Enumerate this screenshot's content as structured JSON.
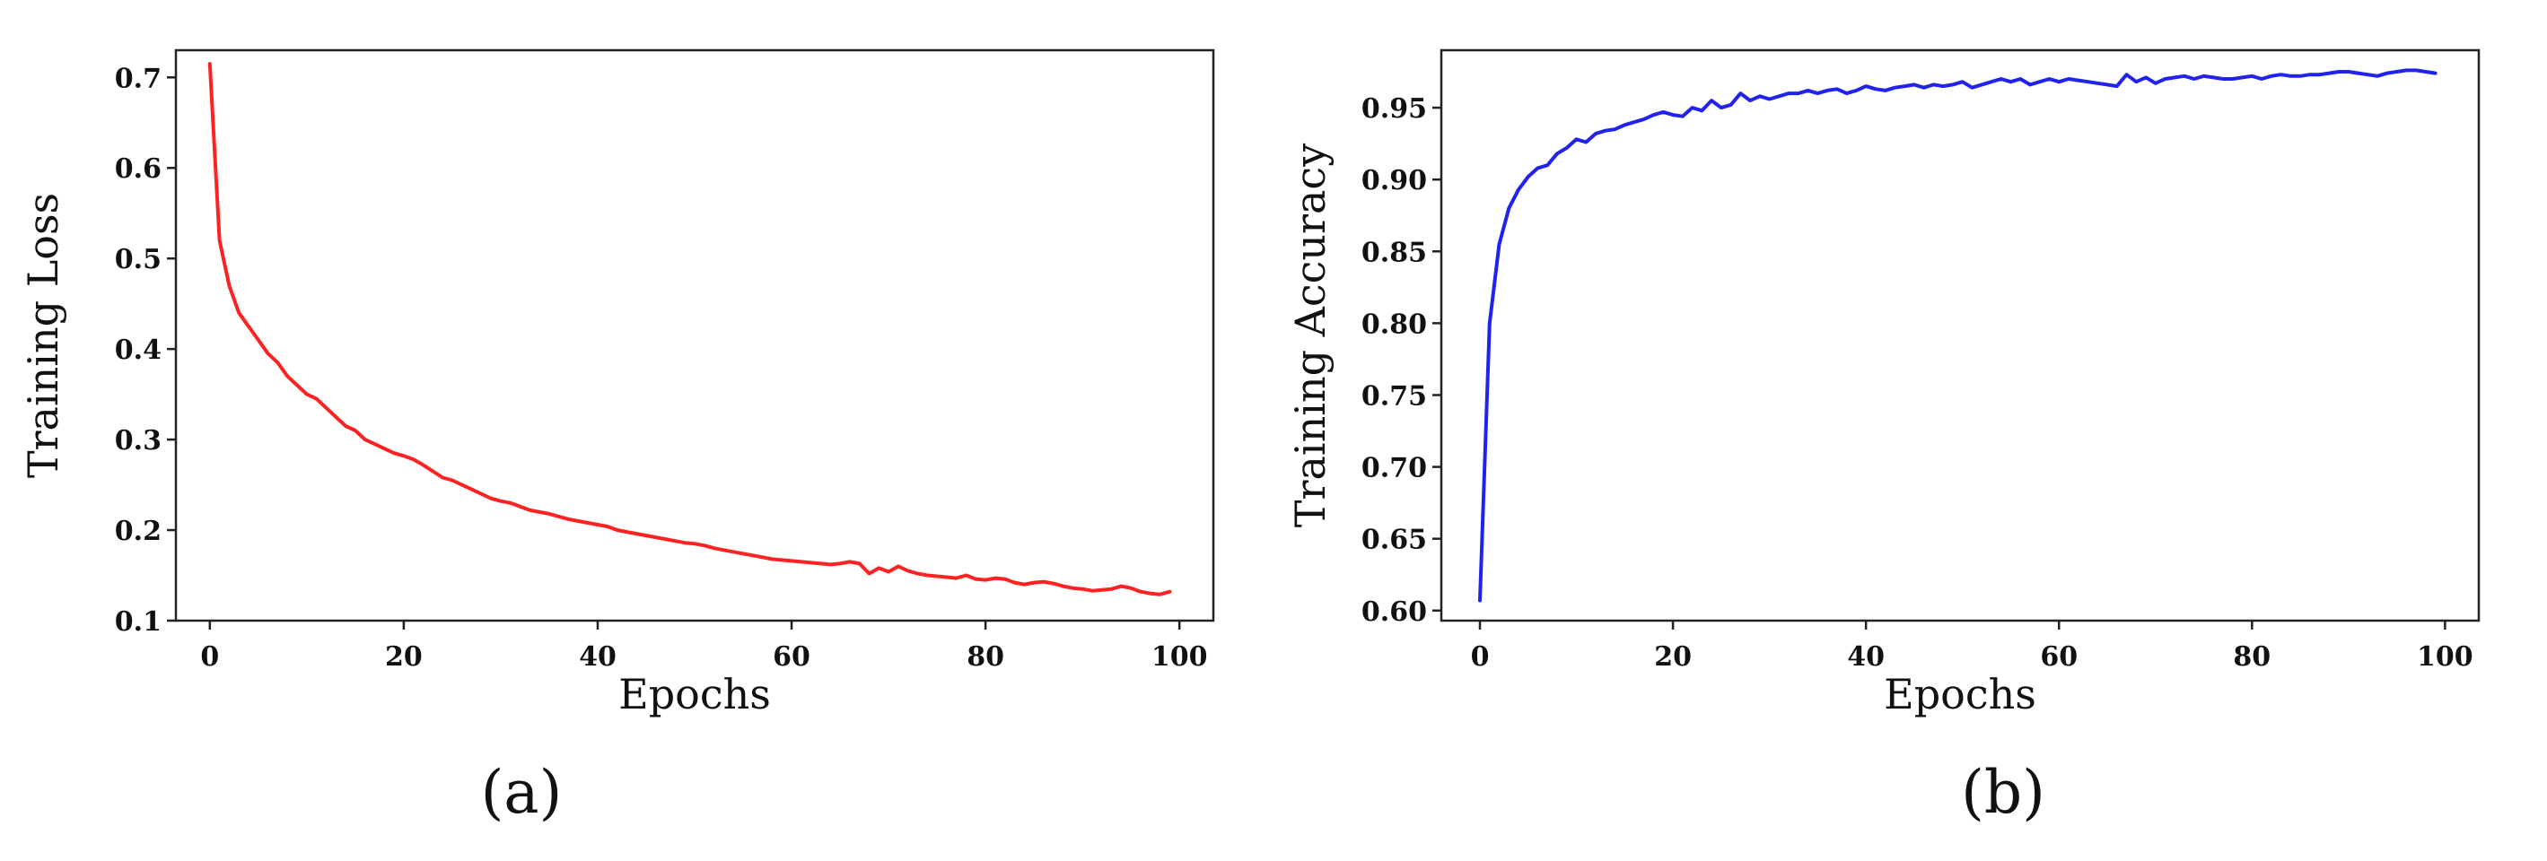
{
  "chart_data": [
    {
      "type": "line",
      "panel_label": "(a)",
      "xlabel": "Epochs",
      "ylabel": "Training Loss",
      "xlim": [
        -3.5,
        103.5
      ],
      "ylim": [
        0.1,
        0.73
      ],
      "xticks": [
        0,
        20,
        40,
        60,
        80,
        100
      ],
      "yticks": [
        0.1,
        0.2,
        0.3,
        0.4,
        0.5,
        0.6,
        0.7
      ],
      "xtick_labels": [
        "0",
        "20",
        "40",
        "60",
        "80",
        "100"
      ],
      "ytick_labels": [
        "0.1",
        "0.2",
        "0.3",
        "0.4",
        "0.5",
        "0.6",
        "0.7"
      ],
      "grid": false,
      "series": [
        {
          "color": "#ff2222",
          "x": [
            0,
            1,
            2,
            3,
            4,
            5,
            6,
            7,
            8,
            9,
            10,
            11,
            12,
            13,
            14,
            15,
            16,
            17,
            18,
            19,
            20,
            21,
            22,
            23,
            24,
            25,
            26,
            27,
            28,
            29,
            30,
            31,
            32,
            33,
            34,
            35,
            36,
            37,
            38,
            39,
            40,
            41,
            42,
            43,
            44,
            45,
            46,
            47,
            48,
            49,
            50,
            51,
            52,
            53,
            54,
            55,
            56,
            57,
            58,
            59,
            60,
            61,
            62,
            63,
            64,
            65,
            66,
            67,
            68,
            69,
            70,
            71,
            72,
            73,
            74,
            75,
            76,
            77,
            78,
            79,
            80,
            81,
            82,
            83,
            84,
            85,
            86,
            87,
            88,
            89,
            90,
            91,
            92,
            93,
            94,
            95,
            96,
            97,
            98,
            99
          ],
          "y": [
            0.715,
            0.52,
            0.47,
            0.44,
            0.425,
            0.41,
            0.395,
            0.385,
            0.37,
            0.36,
            0.35,
            0.345,
            0.335,
            0.325,
            0.315,
            0.31,
            0.3,
            0.295,
            0.29,
            0.285,
            0.282,
            0.278,
            0.272,
            0.265,
            0.258,
            0.255,
            0.25,
            0.245,
            0.24,
            0.235,
            0.232,
            0.23,
            0.226,
            0.222,
            0.22,
            0.218,
            0.215,
            0.212,
            0.21,
            0.208,
            0.206,
            0.204,
            0.2,
            0.198,
            0.196,
            0.194,
            0.192,
            0.19,
            0.188,
            0.186,
            0.185,
            0.183,
            0.18,
            0.178,
            0.176,
            0.174,
            0.172,
            0.17,
            0.168,
            0.167,
            0.166,
            0.165,
            0.164,
            0.163,
            0.162,
            0.163,
            0.165,
            0.163,
            0.152,
            0.158,
            0.154,
            0.16,
            0.155,
            0.152,
            0.15,
            0.149,
            0.148,
            0.147,
            0.15,
            0.146,
            0.145,
            0.147,
            0.146,
            0.142,
            0.14,
            0.142,
            0.143,
            0.141,
            0.138,
            0.136,
            0.135,
            0.133,
            0.134,
            0.135,
            0.138,
            0.136,
            0.132,
            0.13,
            0.129,
            0.132
          ]
        }
      ]
    },
    {
      "type": "line",
      "panel_label": "(b)",
      "xlabel": "Epochs",
      "ylabel": "Training Accuracy",
      "xlim": [
        -4,
        103.5
      ],
      "ylim": [
        0.593,
        0.99
      ],
      "xticks": [
        0,
        20,
        40,
        60,
        80,
        100
      ],
      "yticks": [
        0.6,
        0.65,
        0.7,
        0.75,
        0.8,
        0.85,
        0.9,
        0.95
      ],
      "xtick_labels": [
        "0",
        "20",
        "40",
        "60",
        "80",
        "100"
      ],
      "ytick_labels": [
        "0.60",
        "0.65",
        "0.70",
        "0.75",
        "0.80",
        "0.85",
        "0.90",
        "0.95"
      ],
      "grid": false,
      "series": [
        {
          "color": "#2222ee",
          "x": [
            0,
            1,
            2,
            3,
            4,
            5,
            6,
            7,
            8,
            9,
            10,
            11,
            12,
            13,
            14,
            15,
            16,
            17,
            18,
            19,
            20,
            21,
            22,
            23,
            24,
            25,
            26,
            27,
            28,
            29,
            30,
            31,
            32,
            33,
            34,
            35,
            36,
            37,
            38,
            39,
            40,
            41,
            42,
            43,
            44,
            45,
            46,
            47,
            48,
            49,
            50,
            51,
            52,
            53,
            54,
            55,
            56,
            57,
            58,
            59,
            60,
            61,
            62,
            63,
            64,
            65,
            66,
            67,
            68,
            69,
            70,
            71,
            72,
            73,
            74,
            75,
            76,
            77,
            78,
            79,
            80,
            81,
            82,
            83,
            84,
            85,
            86,
            87,
            88,
            89,
            90,
            91,
            92,
            93,
            94,
            95,
            96,
            97,
            98,
            99
          ],
          "y": [
            0.607,
            0.8,
            0.855,
            0.88,
            0.893,
            0.902,
            0.908,
            0.91,
            0.918,
            0.922,
            0.928,
            0.926,
            0.932,
            0.934,
            0.935,
            0.938,
            0.94,
            0.942,
            0.945,
            0.947,
            0.945,
            0.944,
            0.95,
            0.948,
            0.955,
            0.95,
            0.952,
            0.96,
            0.955,
            0.958,
            0.956,
            0.958,
            0.96,
            0.96,
            0.962,
            0.96,
            0.962,
            0.963,
            0.96,
            0.962,
            0.965,
            0.963,
            0.962,
            0.964,
            0.965,
            0.966,
            0.964,
            0.966,
            0.965,
            0.966,
            0.968,
            0.964,
            0.966,
            0.968,
            0.97,
            0.968,
            0.97,
            0.966,
            0.968,
            0.97,
            0.968,
            0.97,
            0.969,
            0.968,
            0.967,
            0.966,
            0.965,
            0.973,
            0.968,
            0.971,
            0.967,
            0.97,
            0.971,
            0.972,
            0.97,
            0.972,
            0.971,
            0.97,
            0.97,
            0.971,
            0.972,
            0.97,
            0.972,
            0.973,
            0.972,
            0.972,
            0.973,
            0.973,
            0.974,
            0.975,
            0.975,
            0.974,
            0.973,
            0.972,
            0.974,
            0.975,
            0.976,
            0.976,
            0.975,
            0.974
          ]
        }
      ]
    }
  ]
}
